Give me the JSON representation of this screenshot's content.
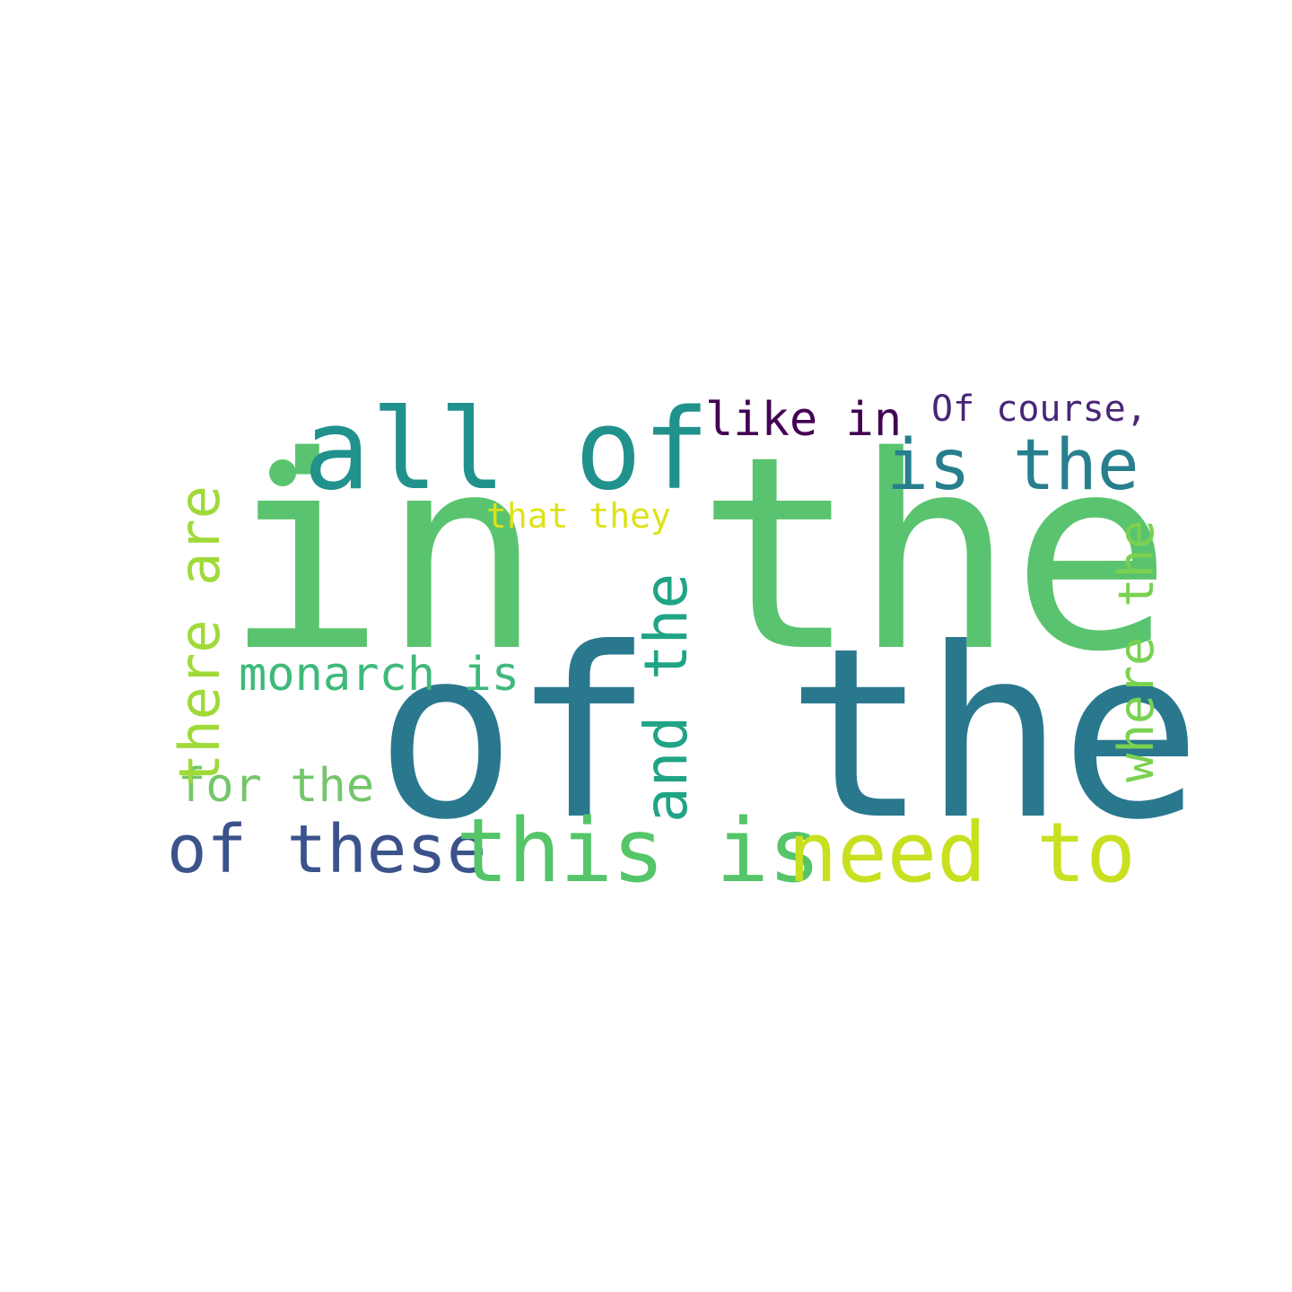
{
  "words": {
    "in_the": {
      "text": "in the",
      "color": "#5ac36f"
    },
    "of_the": {
      "text": "of the",
      "color": "#2a788e"
    },
    "all_of": {
      "text": "all of",
      "color": "#21918c"
    },
    "is_the": {
      "text": "is the",
      "color": "#277f8e"
    },
    "like_in": {
      "text": "like in",
      "color": "#440154"
    },
    "of_course": {
      "text": "Of course,",
      "color": "#482677"
    },
    "that_they": {
      "text": "that they",
      "color": "#dde318"
    },
    "monarch_is": {
      "text": "monarch is",
      "color": "#3fb97a"
    },
    "for_the": {
      "text": "for the",
      "color": "#74c66a"
    },
    "of_these": {
      "text": "of these",
      "color": "#3b528b"
    },
    "this_is": {
      "text": "this is",
      "color": "#54c568"
    },
    "need_to": {
      "text": "need to",
      "color": "#c8e020"
    },
    "there_are": {
      "text": "there are",
      "color": "#a0da39"
    },
    "and_the": {
      "text": "and the",
      "color": "#20a486"
    },
    "where_the": {
      "text": "where the",
      "color": "#7ad151"
    },
    "dot": {
      "text": ".",
      "color": "#5ac36f"
    }
  }
}
